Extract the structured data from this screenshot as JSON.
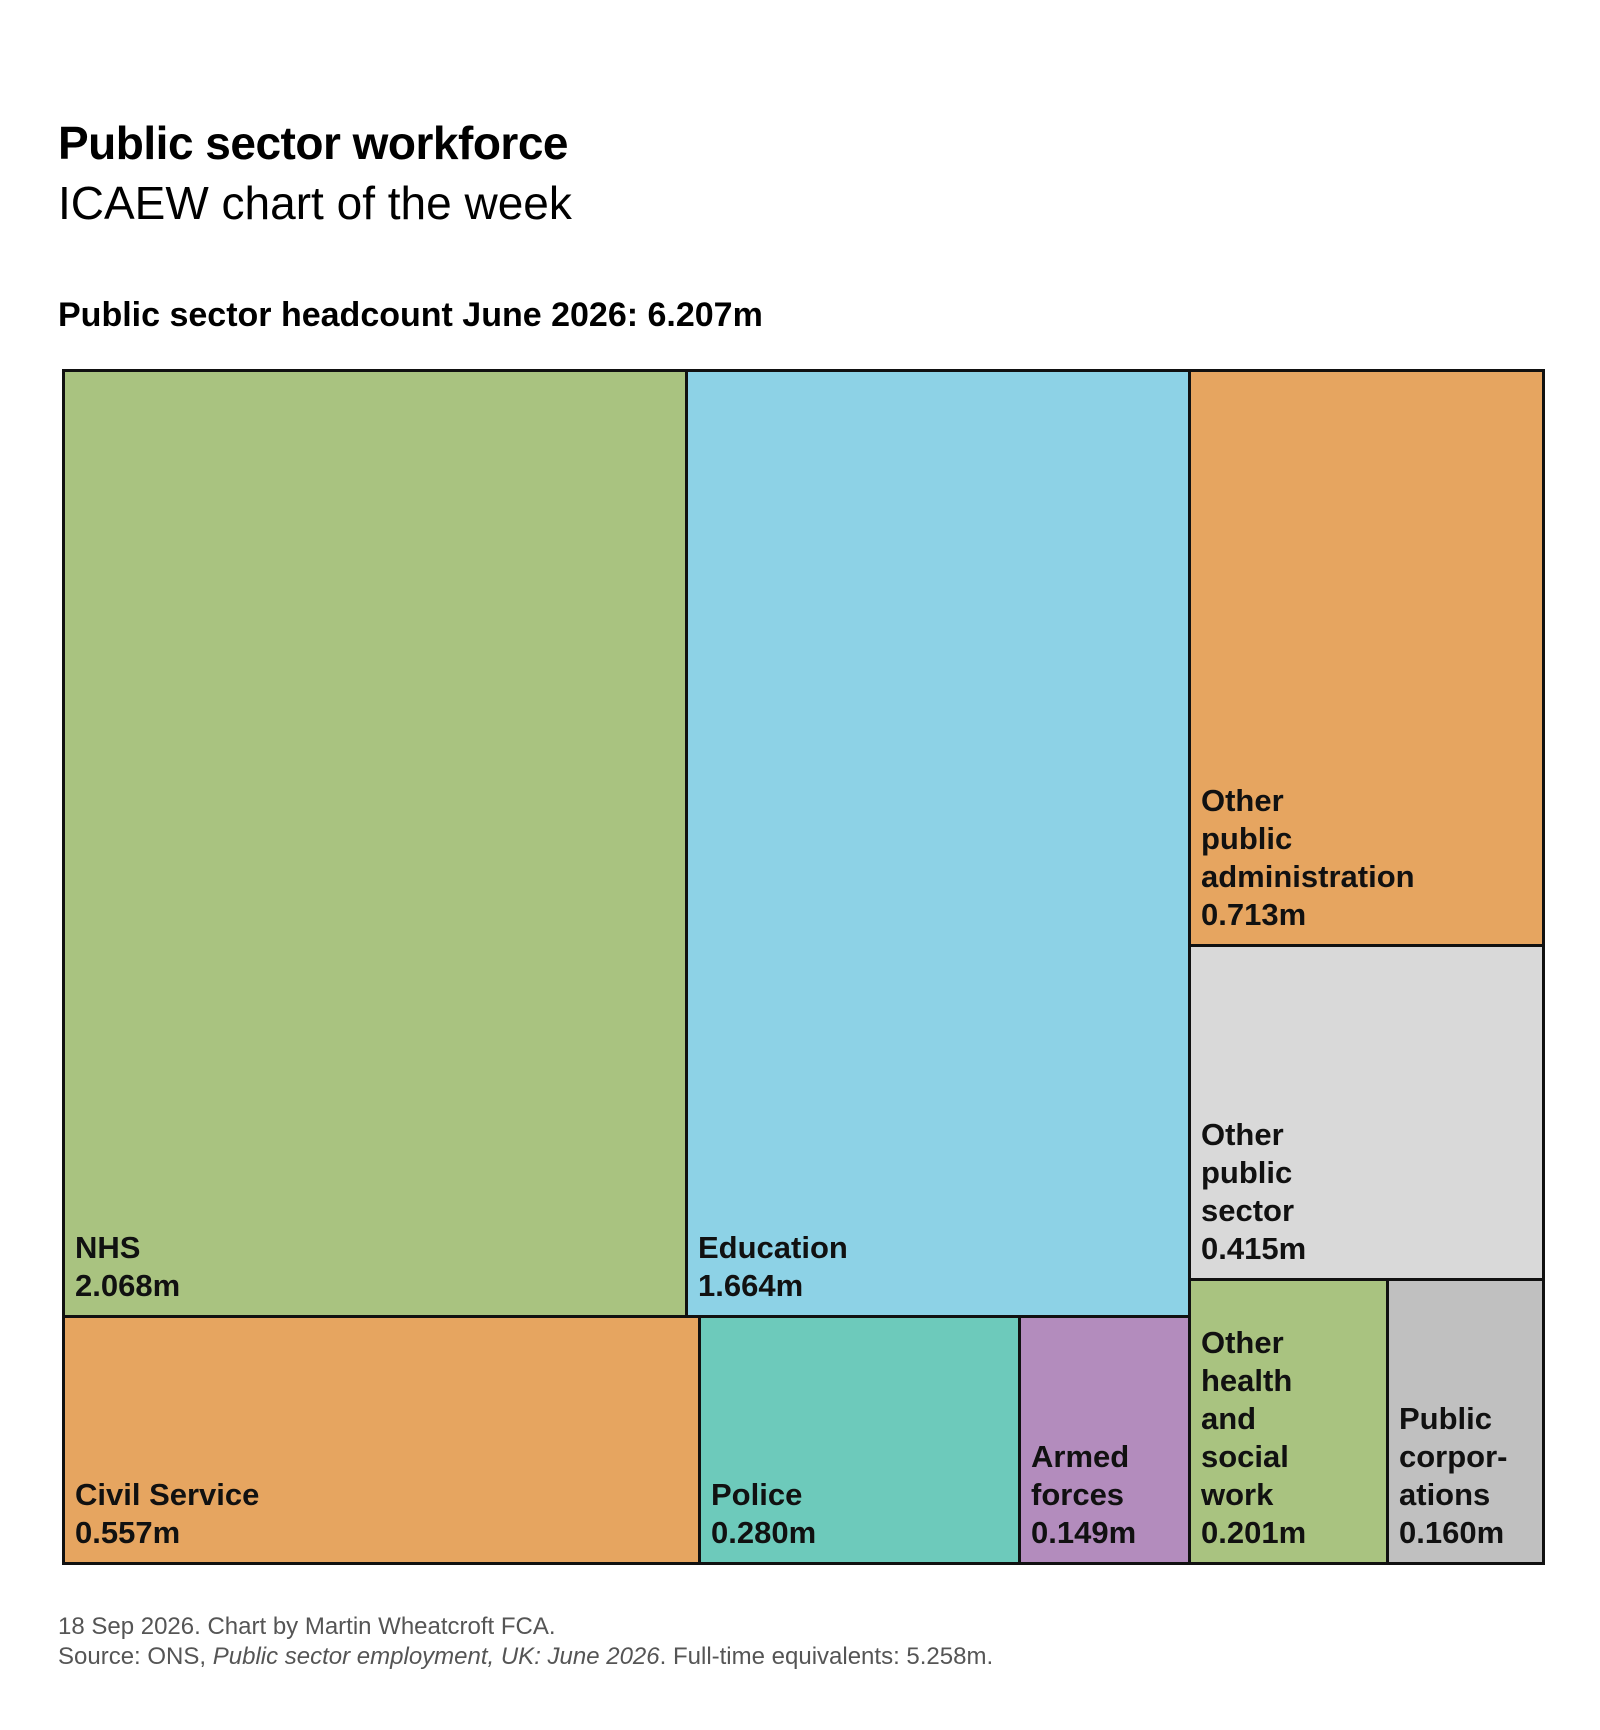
{
  "header": {
    "title": "Public sector workforce",
    "subtitle": "ICAEW chart of the week"
  },
  "chart_data": {
    "type": "treemap",
    "title": "Public sector headcount June 2026: 6.207m",
    "unit": "m",
    "items": [
      {
        "key": "nhs",
        "label_lines": [
          "NHS"
        ],
        "value_text": "2.068m",
        "value": 2.068,
        "color": "#a9c380"
      },
      {
        "key": "education",
        "label_lines": [
          "Education"
        ],
        "value_text": "1.664m",
        "value": 1.664,
        "color": "#8dd2e6"
      },
      {
        "key": "other-public-administration",
        "label_lines": [
          "Other",
          "public",
          "administration"
        ],
        "value_text": "0.713m",
        "value": 0.713,
        "color": "#e6a560"
      },
      {
        "key": "other-public-sector",
        "label_lines": [
          "Other",
          "public",
          "sector"
        ],
        "value_text": "0.415m",
        "value": 0.415,
        "color": "#d9d9d9"
      },
      {
        "key": "civil-service",
        "label_lines": [
          "Civil Service"
        ],
        "value_text": "0.557m",
        "value": 0.557,
        "color": "#e6a560"
      },
      {
        "key": "police",
        "label_lines": [
          "Police"
        ],
        "value_text": "0.280m",
        "value": 0.28,
        "color": "#6dcabb"
      },
      {
        "key": "armed-forces",
        "label_lines": [
          "Armed",
          "forces"
        ],
        "value_text": "0.149m",
        "value": 0.149,
        "color": "#b38cbd"
      },
      {
        "key": "other-health-and-social-work",
        "label_lines": [
          "Other",
          "health",
          "and",
          "social",
          "work"
        ],
        "value_text": "0.201m",
        "value": 0.201,
        "color": "#a9c380"
      },
      {
        "key": "public-corporations",
        "label_lines": [
          "Public",
          "corpor-",
          "ations"
        ],
        "value_text": "0.160m",
        "value": 0.16,
        "color": "#c0c0c0"
      }
    ]
  },
  "footer": {
    "line1": "18 Sep 2026.   Chart by Martin Wheatcroft FCA.",
    "source_prefix": "Source: ONS, ",
    "source_title": "Public sector employment, UK: June 2026",
    "source_suffix": ". Full-time equivalents: 5.258m."
  }
}
